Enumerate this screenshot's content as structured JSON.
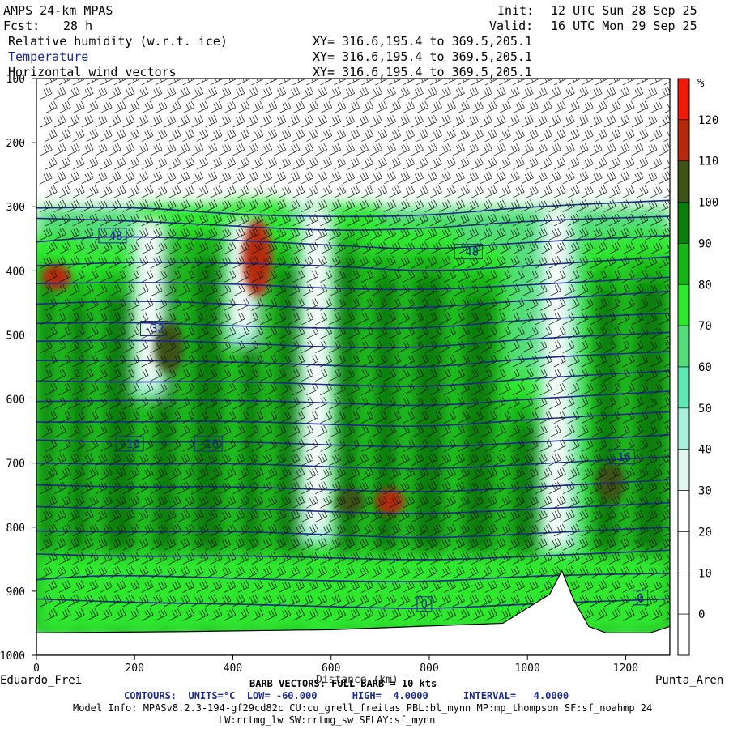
{
  "header": {
    "model": "AMPS 24-km MPAS",
    "fcst_label": "Fcst:",
    "fcst_value": "28 h",
    "init_label": "Init:",
    "init_value": "12 UTC Sun 28 Sep 25",
    "valid_label": "Valid:",
    "valid_value": "16 UTC Mon 29 Sep 25",
    "fields": [
      {
        "name": "Relative humidity (w.r.t. ice)",
        "xy": "XY= 316.6,195.4 to 369.5,205.1"
      },
      {
        "name": "Temperature",
        "xy": "XY= 316.6,195.4 to 369.5,205.1"
      },
      {
        "name": "Horizontal wind vectors",
        "xy": "XY= 316.6,195.4 to 369.5,205.1"
      }
    ]
  },
  "footer": {
    "start_label": "Eduardo_Frei",
    "end_label": "Punta_Aren",
    "distance_label": "Distance (km)",
    "barb_line": "BARB VECTORS: FULL BARB = 10 kts",
    "contours_line": "CONTOURS:  UNITS=°C  LOW= -60.000      HIGH=  4.0000      INTERVAL=   4.0000",
    "model_info": "Model Info: MPASv8.2.3-194-gf29cd82c CU:cu_grell_freitas PBL:bl_mynn MP:mp_thompson SF:sf_noahmp 24",
    "model_info2": "LW:rrtmg_lw SW:rrtmg_sw SFLAY:sf_mynn"
  },
  "colors": {
    "rh_levels": [
      "#ffffff",
      "#ffffff",
      "#ffffff",
      "#ffffff",
      "#dff7ef",
      "#aaf0dc",
      "#5fe8b4",
      "#55dd7a",
      "#2ee82e",
      "#16b416",
      "#0a7d0a",
      "#3d5214",
      "#b42a0e",
      "#f01a0a"
    ],
    "temp_contour": "#1c2a8a",
    "terrain": "#ffffff"
  },
  "chart_data": {
    "type": "heatmap",
    "title": "",
    "xlabel": "Distance (km)",
    "ylabel": "",
    "xlim": [
      0,
      1290
    ],
    "ylim": [
      1000,
      100
    ],
    "x_ticks": [
      0,
      200,
      400,
      600,
      800,
      1000,
      1200
    ],
    "y_ticks": [
      100,
      200,
      300,
      400,
      500,
      600,
      700,
      800,
      900,
      1000
    ],
    "colorbar": {
      "unit": "%",
      "levels": [
        120,
        110,
        100,
        90,
        80,
        70,
        60,
        50,
        40,
        30,
        20,
        10,
        0
      ]
    },
    "temperature_labels": [
      {
        "text": "-48",
        "x": 155,
        "p": 345
      },
      {
        "text": "-48",
        "x": 880,
        "p": 370
      },
      {
        "text": "-32",
        "x": 240,
        "p": 490
      },
      {
        "text": "-16",
        "x": 190,
        "p": 670
      },
      {
        "text": "-16",
        "x": 350,
        "p": 670
      },
      {
        "text": "-16",
        "x": 1190,
        "p": 690
      },
      {
        "text": "0",
        "x": 790,
        "p": 920
      },
      {
        "text": "0",
        "x": 1230,
        "p": 910
      }
    ],
    "terrain_profile": [
      [
        0,
        965
      ],
      [
        300,
        963
      ],
      [
        600,
        960
      ],
      [
        950,
        950
      ],
      [
        1045,
        905
      ],
      [
        1070,
        868
      ],
      [
        1095,
        915
      ],
      [
        1125,
        955
      ],
      [
        1160,
        965
      ],
      [
        1250,
        965
      ],
      [
        1290,
        955
      ]
    ],
    "temperature_lines": [
      [
        [
          0,
          302
        ],
        [
          200,
          300
        ],
        [
          400,
          312
        ],
        [
          600,
          316
        ],
        [
          800,
          314
        ],
        [
          1000,
          300
        ],
        [
          1290,
          290
        ]
      ],
      [
        [
          0,
          318
        ],
        [
          200,
          322
        ],
        [
          400,
          330
        ],
        [
          600,
          338
        ],
        [
          800,
          334
        ],
        [
          1000,
          322
        ],
        [
          1290,
          315
        ]
      ],
      [
        [
          0,
          355
        ],
        [
          150,
          345
        ],
        [
          400,
          352
        ],
        [
          600,
          360
        ],
        [
          800,
          368
        ],
        [
          1000,
          355
        ],
        [
          1290,
          345
        ]
      ],
      [
        [
          0,
          392
        ],
        [
          200,
          386
        ],
        [
          400,
          388
        ],
        [
          600,
          392
        ],
        [
          800,
          402
        ],
        [
          1000,
          392
        ],
        [
          1290,
          378
        ]
      ],
      [
        [
          0,
          420
        ],
        [
          200,
          418
        ],
        [
          400,
          420
        ],
        [
          600,
          428
        ],
        [
          800,
          430
        ],
        [
          1000,
          422
        ],
        [
          1290,
          410
        ]
      ],
      [
        [
          0,
          452
        ],
        [
          200,
          446
        ],
        [
          400,
          452
        ],
        [
          600,
          460
        ],
        [
          800,
          458
        ],
        [
          1000,
          446
        ],
        [
          1290,
          432
        ]
      ],
      [
        [
          0,
          482
        ],
        [
          200,
          480
        ],
        [
          400,
          486
        ],
        [
          600,
          490
        ],
        [
          800,
          490
        ],
        [
          1000,
          476
        ],
        [
          1290,
          466
        ]
      ],
      [
        [
          0,
          510
        ],
        [
          200,
          508
        ],
        [
          400,
          512
        ],
        [
          600,
          520
        ],
        [
          800,
          520
        ],
        [
          1000,
          506
        ],
        [
          1290,
          496
        ]
      ],
      [
        [
          0,
          540
        ],
        [
          200,
          540
        ],
        [
          400,
          542
        ],
        [
          600,
          548
        ],
        [
          800,
          552
        ],
        [
          1000,
          536
        ],
        [
          1290,
          526
        ]
      ],
      [
        [
          0,
          572
        ],
        [
          200,
          574
        ],
        [
          400,
          572
        ],
        [
          600,
          578
        ],
        [
          800,
          582
        ],
        [
          1000,
          568
        ],
        [
          1290,
          556
        ]
      ],
      [
        [
          0,
          604
        ],
        [
          200,
          602
        ],
        [
          400,
          602
        ],
        [
          600,
          606
        ],
        [
          800,
          612
        ],
        [
          1000,
          600
        ],
        [
          1290,
          588
        ]
      ],
      [
        [
          0,
          636
        ],
        [
          200,
          636
        ],
        [
          400,
          634
        ],
        [
          600,
          640
        ],
        [
          800,
          644
        ],
        [
          1000,
          632
        ],
        [
          1290,
          620
        ]
      ],
      [
        [
          0,
          664
        ],
        [
          200,
          668
        ],
        [
          400,
          666
        ],
        [
          600,
          672
        ],
        [
          800,
          676
        ],
        [
          1000,
          668
        ],
        [
          1290,
          656
        ]
      ],
      [
        [
          0,
          700
        ],
        [
          200,
          702
        ],
        [
          400,
          700
        ],
        [
          600,
          706
        ],
        [
          800,
          710
        ],
        [
          1000,
          702
        ],
        [
          1290,
          690
        ]
      ],
      [
        [
          0,
          734
        ],
        [
          200,
          738
        ],
        [
          400,
          736
        ],
        [
          600,
          742
        ],
        [
          800,
          746
        ],
        [
          1000,
          738
        ],
        [
          1290,
          726
        ]
      ],
      [
        [
          0,
          768
        ],
        [
          200,
          772
        ],
        [
          400,
          770
        ],
        [
          600,
          776
        ],
        [
          800,
          780
        ],
        [
          1000,
          772
        ],
        [
          1290,
          762
        ]
      ],
      [
        [
          0,
          806
        ],
        [
          200,
          808
        ],
        [
          400,
          806
        ],
        [
          600,
          812
        ],
        [
          800,
          818
        ],
        [
          1000,
          810
        ],
        [
          1290,
          800
        ]
      ],
      [
        [
          0,
          842
        ],
        [
          200,
          846
        ],
        [
          400,
          844
        ],
        [
          600,
          848
        ],
        [
          800,
          852
        ],
        [
          1000,
          846
        ],
        [
          1290,
          836
        ]
      ],
      [
        [
          0,
          882
        ],
        [
          150,
          874
        ],
        [
          400,
          880
        ],
        [
          600,
          884
        ],
        [
          800,
          886
        ],
        [
          1000,
          876
        ],
        [
          1290,
          872
        ]
      ],
      [
        [
          0,
          912
        ],
        [
          200,
          918
        ],
        [
          400,
          920
        ],
        [
          600,
          924
        ],
        [
          800,
          928
        ],
        [
          1000,
          920
        ],
        [
          1290,
          912
        ]
      ]
    ],
    "rh_columns": [
      {
        "x": 40,
        "top": 345,
        "bottom": 965,
        "peak": 120,
        "core": [
          390,
          430
        ]
      },
      {
        "x": 100,
        "top": 370,
        "bottom": 965,
        "peak": 105,
        "core": [
          500,
          800
        ]
      },
      {
        "x": 170,
        "top": 360,
        "bottom": 965,
        "peak": 100,
        "core": [
          550,
          850
        ]
      },
      {
        "x": 270,
        "top": 300,
        "bottom": 965,
        "peak": 110,
        "core": [
          480,
          560
        ]
      },
      {
        "x": 350,
        "top": 300,
        "bottom": 965,
        "peak": 100,
        "core": [
          600,
          850
        ]
      },
      {
        "x": 450,
        "top": 290,
        "bottom": 965,
        "peak": 120,
        "core": [
          320,
          440
        ]
      },
      {
        "x": 520,
        "top": 320,
        "bottom": 965,
        "peak": 105,
        "core": [
          620,
          800
        ]
      },
      {
        "x": 640,
        "top": 300,
        "bottom": 965,
        "peak": 110,
        "core": [
          740,
          780
        ]
      },
      {
        "x": 720,
        "top": 330,
        "bottom": 965,
        "peak": 120,
        "core": [
          740,
          780
        ]
      },
      {
        "x": 800,
        "top": 330,
        "bottom": 965,
        "peak": 105,
        "core": [
          600,
          880
        ]
      },
      {
        "x": 900,
        "top": 360,
        "bottom": 965,
        "peak": 100,
        "core": [
          520,
          760
        ]
      },
      {
        "x": 1000,
        "top": 560,
        "bottom": 950,
        "peak": 90,
        "core": [
          700,
          860
        ]
      },
      {
        "x": 1170,
        "top": 350,
        "bottom": 965,
        "peak": 115,
        "core": [
          700,
          760
        ]
      },
      {
        "x": 1250,
        "top": 340,
        "bottom": 965,
        "peak": 100,
        "core": [
          500,
          850
        ]
      }
    ],
    "dry_columns": [
      {
        "x": 570,
        "top": 300,
        "bottom": 830
      },
      {
        "x": 1060,
        "top": 300,
        "bottom": 860
      },
      {
        "x": 230,
        "top": 320,
        "bottom": 600
      },
      {
        "x": 420,
        "top": 320,
        "bottom": 520
      }
    ],
    "wind_barbs": {
      "dx_km": 28,
      "dp_hpa": 22,
      "p_top": 110,
      "p_bottom": 960
    }
  }
}
